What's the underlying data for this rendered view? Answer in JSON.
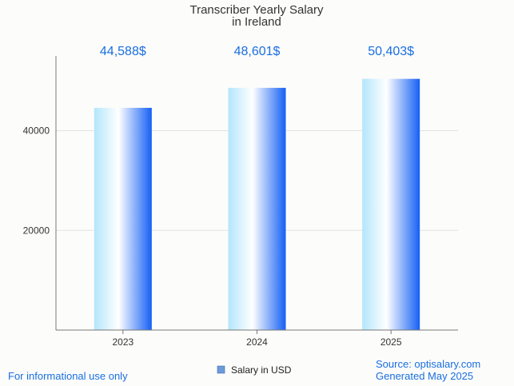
{
  "chart_data": {
    "type": "bar",
    "title_lines": [
      "Transcriber Yearly Salary",
      "in Ireland"
    ],
    "categories": [
      "2023",
      "2024",
      "2025"
    ],
    "values": [
      44588,
      48601,
      50403
    ],
    "value_labels": [
      "44,588$",
      "48,601$",
      "50,403$"
    ],
    "y_ticks": [
      20000,
      40000
    ],
    "y_tick_labels": [
      "20000",
      "40000"
    ],
    "ylim": [
      0,
      55000
    ],
    "legend": [
      "Salary in USD"
    ],
    "legend_position": "bottom-center",
    "grid": true,
    "xlabel": "",
    "ylabel": ""
  },
  "footer": {
    "note": "For informational use only",
    "source": "Source: optisalary.com",
    "generated": "Generated May 2025"
  },
  "colors": {
    "bar_light": "#b3e6fb",
    "bar_mid": "#ffffff",
    "bar_dark": "#1560f5",
    "label_blue": "#1a6fe0",
    "grid": "#e3e3e3",
    "axis": "#777777",
    "legend_swatch": "#6b9bd8"
  }
}
